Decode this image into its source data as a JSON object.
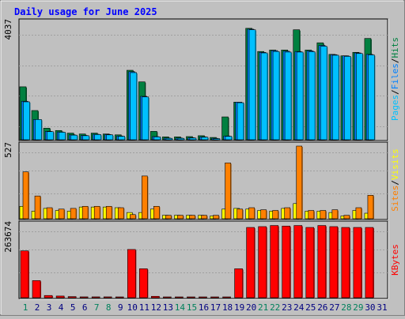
{
  "title": "Daily usage for June 2025",
  "colors": {
    "background": "#c0c0c0",
    "title": "#0000ff",
    "hits": "#008040",
    "files": "#0080ff",
    "pages": "#00c0ff",
    "visits": "#ffff00",
    "sites": "#ff8000",
    "kbytes": "#ff0000",
    "weekend_day": "#00805c",
    "weekday": "#000080"
  },
  "chart_data": [
    {
      "type": "bar",
      "panel": "hits-files-pages",
      "ymax_label": "4037",
      "ylim": [
        0,
        4037
      ],
      "legend": {
        "hits": "Hits",
        "files": "Files",
        "pages": "Pages",
        "sep": "/"
      },
      "categories": [
        "1",
        "2",
        "3",
        "4",
        "5",
        "6",
        "7",
        "8",
        "9",
        "10",
        "11",
        "12",
        "13",
        "14",
        "15",
        "16",
        "17",
        "18",
        "19",
        "20",
        "21",
        "22",
        "23",
        "24",
        "25",
        "26",
        "27",
        "28",
        "29",
        "30",
        "31"
      ],
      "series": [
        {
          "name": "Hits",
          "key": "hits",
          "values": [
            1830,
            1010,
            400,
            320,
            230,
            200,
            230,
            200,
            170,
            2400,
            2000,
            290,
            100,
            100,
            110,
            140,
            80,
            790,
            1300,
            3850,
            3050,
            3100,
            3100,
            3800,
            3100,
            3350,
            2950,
            2900,
            3020,
            3500,
            0
          ]
        },
        {
          "name": "Files",
          "key": "files",
          "values": [
            1330,
            700,
            290,
            270,
            170,
            150,
            190,
            180,
            130,
            2350,
            1500,
            110,
            60,
            60,
            70,
            100,
            50,
            130,
            1300,
            3820,
            3020,
            3080,
            3060,
            3050,
            3070,
            3260,
            2940,
            2900,
            3000,
            2950,
            0
          ]
        },
        {
          "name": "Pages",
          "key": "pages",
          "values": [
            1310,
            700,
            280,
            260,
            160,
            140,
            180,
            170,
            120,
            2320,
            1480,
            100,
            50,
            50,
            60,
            90,
            40,
            120,
            1280,
            3800,
            3000,
            3050,
            3030,
            3030,
            3040,
            3230,
            2920,
            2880,
            2980,
            2930,
            0
          ]
        }
      ]
    },
    {
      "type": "bar",
      "panel": "visits-sites",
      "ymax_label": "527",
      "ylim": [
        0,
        527
      ],
      "legend": {
        "visits": "Visits",
        "sites": "Sites",
        "sep": "/"
      },
      "categories": [
        "1",
        "2",
        "3",
        "4",
        "5",
        "6",
        "7",
        "8",
        "9",
        "10",
        "11",
        "12",
        "13",
        "14",
        "15",
        "16",
        "17",
        "18",
        "19",
        "20",
        "21",
        "22",
        "23",
        "24",
        "25",
        "26",
        "27",
        "28",
        "29",
        "30",
        "31"
      ],
      "series": [
        {
          "name": "Visits",
          "key": "visits",
          "values": [
            90,
            55,
            75,
            60,
            55,
            85,
            85,
            85,
            80,
            45,
            45,
            70,
            25,
            25,
            25,
            25,
            20,
            70,
            75,
            70,
            60,
            55,
            75,
            110,
            55,
            55,
            45,
            20,
            60,
            40,
            0
          ]
        },
        {
          "name": "Sites",
          "key": "sites",
          "values": [
            340,
            165,
            80,
            70,
            75,
            90,
            90,
            90,
            80,
            30,
            310,
            90,
            25,
            25,
            25,
            25,
            25,
            405,
            70,
            80,
            65,
            60,
            80,
            527,
            60,
            60,
            65,
            25,
            80,
            170,
            0
          ]
        }
      ]
    },
    {
      "type": "bar",
      "panel": "kbytes",
      "ymax_label": "263674",
      "ylim": [
        0,
        263674
      ],
      "legend": {
        "kbytes": "KBytes"
      },
      "categories": [
        "1",
        "2",
        "3",
        "4",
        "5",
        "6",
        "7",
        "8",
        "9",
        "10",
        "11",
        "12",
        "13",
        "14",
        "15",
        "16",
        "17",
        "18",
        "19",
        "20",
        "21",
        "22",
        "23",
        "24",
        "25",
        "26",
        "27",
        "28",
        "29",
        "30",
        "31"
      ],
      "series": [
        {
          "name": "KBytes",
          "key": "kbytes",
          "values": [
            170000,
            62000,
            8000,
            6000,
            4000,
            3000,
            3000,
            3000,
            2000,
            175000,
            105000,
            5000,
            1000,
            1000,
            1000,
            1000,
            1000,
            2000,
            105000,
            255000,
            258000,
            262000,
            260000,
            262000,
            255000,
            262000,
            258000,
            255000,
            255000,
            255000,
            0
          ]
        }
      ]
    }
  ],
  "weekend_days": [
    1,
    7,
    8,
    14,
    15,
    21,
    22,
    28,
    29
  ]
}
